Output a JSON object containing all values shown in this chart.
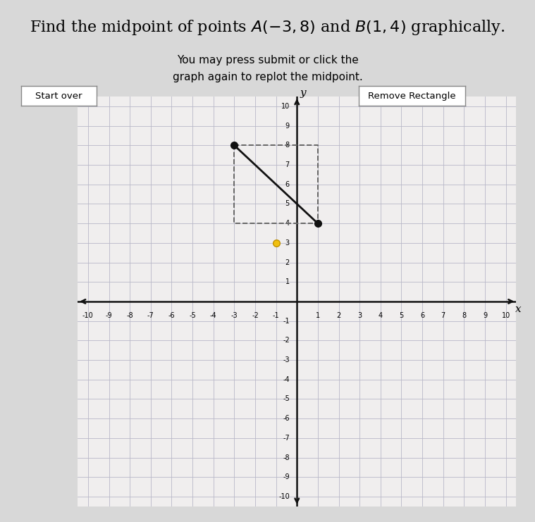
{
  "title_part1": "Find the midpoint of points ",
  "title_math": "A(-3,8)",
  "title_mid": " and ",
  "title_math2": "B(1,4)",
  "title_part2": " graphically.",
  "subtitle1": "You may press submit or click the",
  "subtitle2": "graph again to replot the midpoint.",
  "point_A": [
    -3,
    8
  ],
  "point_B": [
    1,
    4
  ],
  "midpoint_guess": [
    -1,
    3
  ],
  "xlim": [
    -10.5,
    10.5
  ],
  "ylim": [
    -10.5,
    10.5
  ],
  "xticks": [
    -10,
    -9,
    -8,
    -7,
    -6,
    -5,
    -4,
    -3,
    -2,
    -1,
    1,
    2,
    3,
    4,
    5,
    6,
    7,
    8,
    9,
    10
  ],
  "yticks": [
    -10,
    -9,
    -8,
    -7,
    -6,
    -5,
    -4,
    -3,
    -2,
    -1,
    1,
    2,
    3,
    4,
    5,
    6,
    7,
    8,
    9,
    10
  ],
  "bg_color": "#d8d8d8",
  "graph_bg_color": "#f0eeee",
  "grid_color": "#b8b8c8",
  "line_color": "#111111",
  "point_color": "#111111",
  "midpoint_color": "#f0c010",
  "midpoint_edge_color": "#c09000",
  "dashed_color": "#666666",
  "axis_color": "#111111",
  "button1_text": "Start over",
  "button2_text": "Remove Rectangle",
  "tick_fontsize": 7,
  "title_fontsize": 16,
  "subtitle_fontsize": 11
}
